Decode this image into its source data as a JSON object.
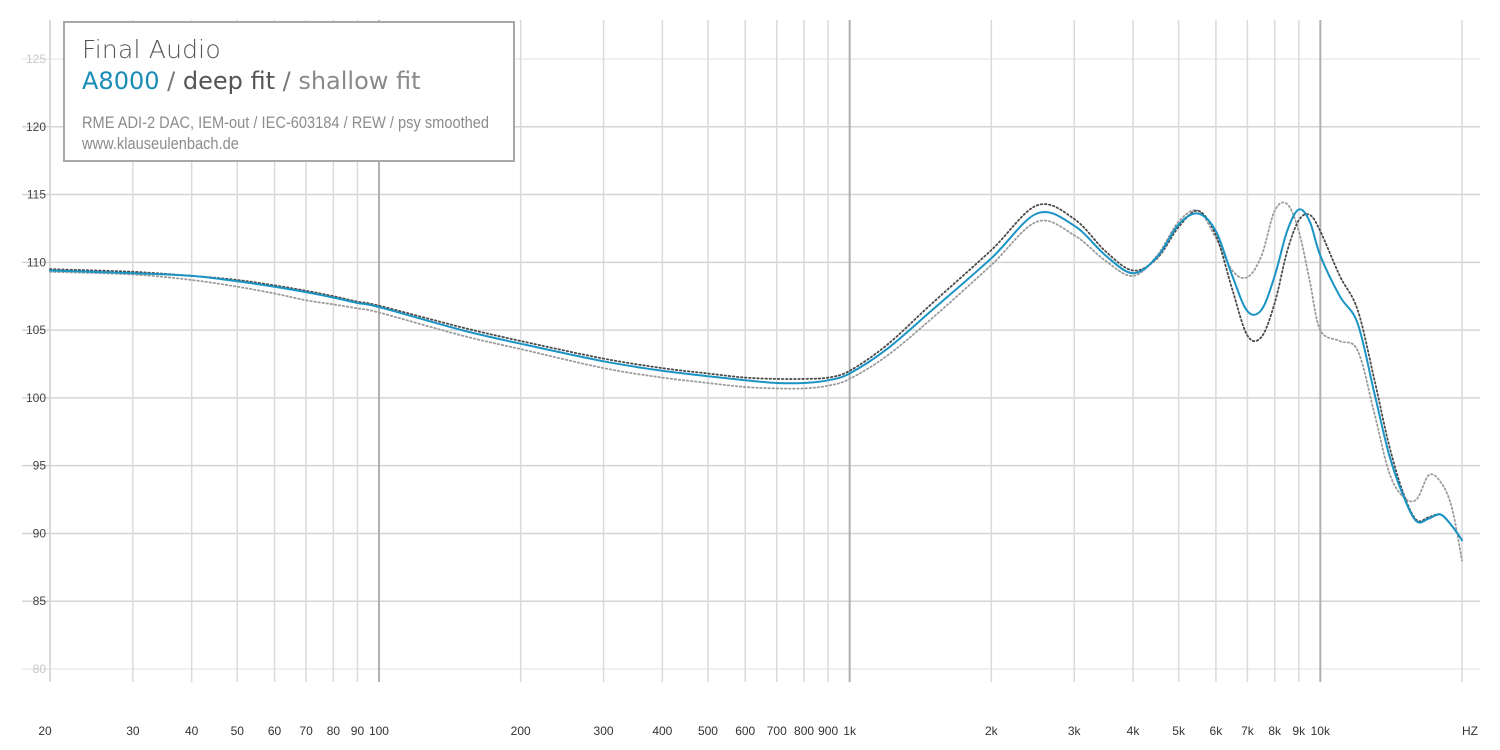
{
  "legend": {
    "brand": "Final Audio",
    "model": "A8000",
    "sep1": " / ",
    "deep": "deep fit",
    "sep2": " / ",
    "shallow": "shallow fit",
    "setup": "RME ADI-2 DAC, IEM-out / IEC-603184 / REW / psy smoothed",
    "site": "www.klauseulenbach.de"
  },
  "colors": {
    "main": "#1a94c4",
    "deep": "#4a4a4a",
    "shallow": "#9c9c9c",
    "grid": "#d9d9d9",
    "gridDecade": "#b5b5b5"
  },
  "chart_data": {
    "type": "line",
    "title": "",
    "xlabel": "",
    "ylabel": "",
    "xscale": "log",
    "xlim": [
      20,
      20000
    ],
    "ylim": [
      80,
      125
    ],
    "x_tick_labels": [
      "20",
      "30",
      "40",
      "50",
      "60",
      "70",
      "80",
      "90",
      "100",
      "200",
      "300",
      "400",
      "500",
      "600",
      "700",
      "800",
      "900",
      "1k",
      "2k",
      "3k",
      "4k",
      "5k",
      "6k",
      "7k",
      "8k",
      "9k",
      "10k"
    ],
    "x_unit_label": "HZ",
    "y_ticks": [
      80,
      85,
      90,
      95,
      100,
      105,
      110,
      115,
      120,
      125
    ],
    "series": [
      {
        "name": "A8000",
        "style": "solid",
        "x": [
          20,
          30,
          40,
          50,
          60,
          70,
          80,
          90,
          100,
          150,
          200,
          300,
          400,
          500,
          600,
          700,
          800,
          900,
          1000,
          1200,
          1500,
          2000,
          2500,
          3000,
          3500,
          4000,
          4500,
          5000,
          5500,
          6000,
          6500,
          7000,
          7500,
          8000,
          8500,
          9000,
          9500,
          10000,
          11000,
          12000,
          13000,
          14000,
          15000,
          16000,
          17000,
          18000,
          19000,
          20000
        ],
        "y": [
          109.4,
          109.2,
          109.0,
          108.6,
          108.2,
          107.8,
          107.4,
          107.0,
          106.7,
          105.0,
          104.0,
          102.7,
          102.0,
          101.6,
          101.3,
          101.1,
          101.1,
          101.3,
          101.8,
          103.6,
          106.5,
          110.3,
          113.6,
          112.7,
          110.5,
          109.2,
          110.4,
          112.8,
          113.6,
          112.3,
          109.0,
          106.4,
          106.5,
          109.0,
          112.3,
          113.9,
          113.0,
          110.5,
          107.5,
          105.5,
          100.5,
          95.8,
          92.8,
          90.9,
          91.1,
          91.4,
          90.6,
          89.5
        ]
      },
      {
        "name": "deep fit",
        "style": "dotted",
        "x": [
          20,
          30,
          40,
          50,
          60,
          70,
          80,
          90,
          100,
          150,
          200,
          300,
          400,
          500,
          600,
          700,
          800,
          900,
          1000,
          1200,
          1500,
          2000,
          2500,
          3000,
          3500,
          4000,
          4500,
          5000,
          5500,
          6000,
          6500,
          7000,
          7500,
          8000,
          8500,
          9000,
          9500,
          10000,
          11000,
          12000,
          13000,
          14000,
          15000,
          16000,
          17000,
          18000,
          19000,
          20000
        ],
        "y": [
          109.5,
          109.3,
          109.0,
          108.7,
          108.3,
          107.9,
          107.5,
          107.1,
          106.8,
          105.2,
          104.2,
          102.9,
          102.2,
          101.8,
          101.5,
          101.4,
          101.4,
          101.5,
          102.0,
          103.9,
          107.0,
          110.9,
          114.2,
          113.2,
          110.8,
          109.4,
          110.3,
          112.6,
          113.8,
          112.0,
          108.0,
          104.6,
          104.5,
          107.0,
          110.8,
          113.1,
          113.5,
          112.3,
          109.0,
          106.5,
          101.5,
          96.5,
          93.0,
          91.0,
          91.2,
          91.4,
          90.6,
          89.5
        ]
      },
      {
        "name": "shallow fit",
        "style": "dotted",
        "x": [
          20,
          30,
          40,
          50,
          60,
          70,
          80,
          90,
          100,
          150,
          200,
          300,
          400,
          500,
          600,
          700,
          800,
          900,
          1000,
          1200,
          1500,
          2000,
          2500,
          3000,
          3500,
          4000,
          4500,
          5000,
          5500,
          6000,
          6500,
          7000,
          7500,
          8000,
          8500,
          9000,
          9500,
          10000,
          11000,
          12000,
          13000,
          14000,
          15000,
          16000,
          17000,
          18000,
          19000,
          20000
        ],
        "y": [
          109.3,
          109.1,
          108.7,
          108.2,
          107.7,
          107.2,
          106.9,
          106.6,
          106.3,
          104.6,
          103.6,
          102.2,
          101.5,
          101.1,
          100.8,
          100.7,
          100.7,
          100.9,
          101.4,
          103.1,
          105.9,
          109.8,
          113.0,
          112.0,
          110.1,
          109.0,
          110.5,
          113.0,
          113.8,
          111.8,
          109.4,
          108.9,
          110.5,
          113.8,
          114.3,
          112.3,
          108.6,
          105.0,
          104.2,
          103.5,
          99.0,
          94.5,
          92.7,
          92.5,
          94.3,
          93.8,
          92.0,
          88.0
        ]
      }
    ]
  }
}
